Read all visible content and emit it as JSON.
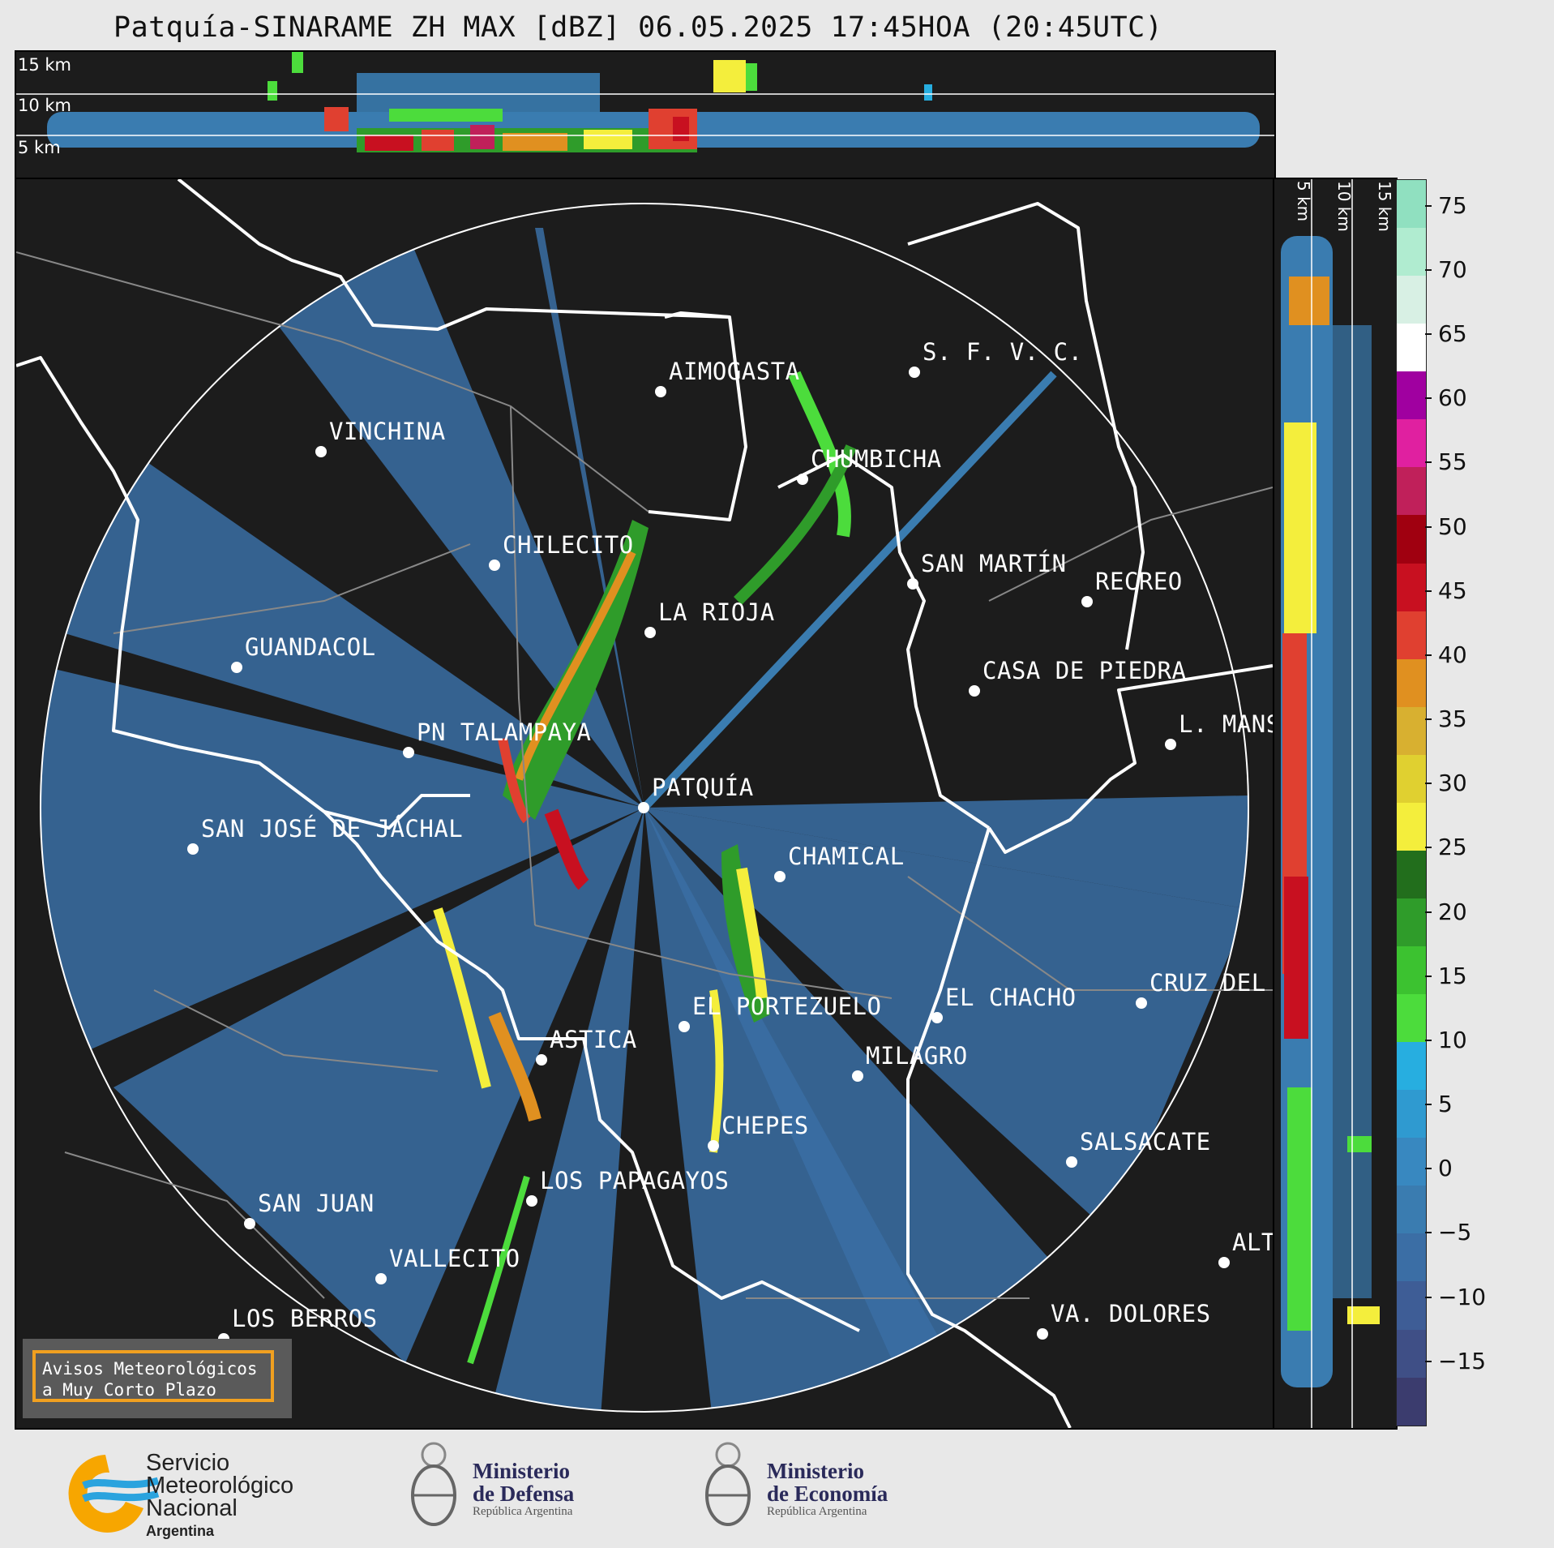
{
  "title": "Patquía-SINARAME ZH MAX [dBZ] 06.05.2025 17:45HOA (20:45UTC)",
  "height_labels": {
    "h15": "15 km",
    "h10": "10 km",
    "h5": "5 km"
  },
  "colorbar": {
    "ticks": [
      "75",
      "70",
      "65",
      "60",
      "55",
      "50",
      "45",
      "40",
      "35",
      "30",
      "25",
      "20",
      "15",
      "10",
      "5",
      "0",
      "−5",
      "−10",
      "−15"
    ],
    "range": [
      -20,
      77
    ],
    "colors": [
      "#3b3c6e",
      "#3f4f86",
      "#3e5d96",
      "#3b6ea5",
      "#3a7cb0",
      "#3888c0",
      "#2f9ad0",
      "#27aee0",
      "#4cdc3c",
      "#3cc230",
      "#2f9c2a",
      "#226e1c",
      "#f4ee3c",
      "#e0d030",
      "#d8b030",
      "#e09020",
      "#e04030",
      "#c81020",
      "#a00010",
      "#c0205a",
      "#e020a0",
      "#a000a0",
      "#ffffff",
      "#d8f0e4",
      "#b0ecd0",
      "#90e0c0"
    ]
  },
  "cities": [
    {
      "name": "AIMOGASTA"
    },
    {
      "name": "S. F. V. C."
    },
    {
      "name": "VINCHINA"
    },
    {
      "name": "CHUMBICHA"
    },
    {
      "name": "CHILECITO"
    },
    {
      "name": "SAN MARTÍN"
    },
    {
      "name": "RECREO"
    },
    {
      "name": "LA RIOJA"
    },
    {
      "name": "GUANDACOL"
    },
    {
      "name": "CASA DE PIEDRA"
    },
    {
      "name": "L. MANS"
    },
    {
      "name": "PN TALAMPAYA"
    },
    {
      "name": "PATQUÍA"
    },
    {
      "name": "SAN JOSÉ DE JÁCHAL"
    },
    {
      "name": "CHAMICAL"
    },
    {
      "name": "EL CHACHO"
    },
    {
      "name": "CRUZ DEL"
    },
    {
      "name": "EL PORTEZUELO"
    },
    {
      "name": "ASTICA"
    },
    {
      "name": "MILAGRO"
    },
    {
      "name": "CHEPES"
    },
    {
      "name": "SALSACATE"
    },
    {
      "name": "LOS PAPAGAYOS"
    },
    {
      "name": "SAN JUAN"
    },
    {
      "name": "ALT"
    },
    {
      "name": "VALLECITO"
    },
    {
      "name": "VA. DOLORES"
    },
    {
      "name": "LOS BERROS"
    }
  ],
  "badge": {
    "line1": "Avisos Meteorológicos",
    "line2": "a Muy Corto Plazo"
  },
  "logos": {
    "smn": {
      "line1": "Servicio",
      "line2": "Meteorológico",
      "line3": "Nacional",
      "line4": "Argentina"
    },
    "defensa": {
      "line1": "Ministerio",
      "line2": "de Defensa",
      "line3": "República Argentina"
    },
    "economia": {
      "line1": "Ministerio",
      "line2": "de Economía",
      "line3": "República Argentina"
    }
  }
}
